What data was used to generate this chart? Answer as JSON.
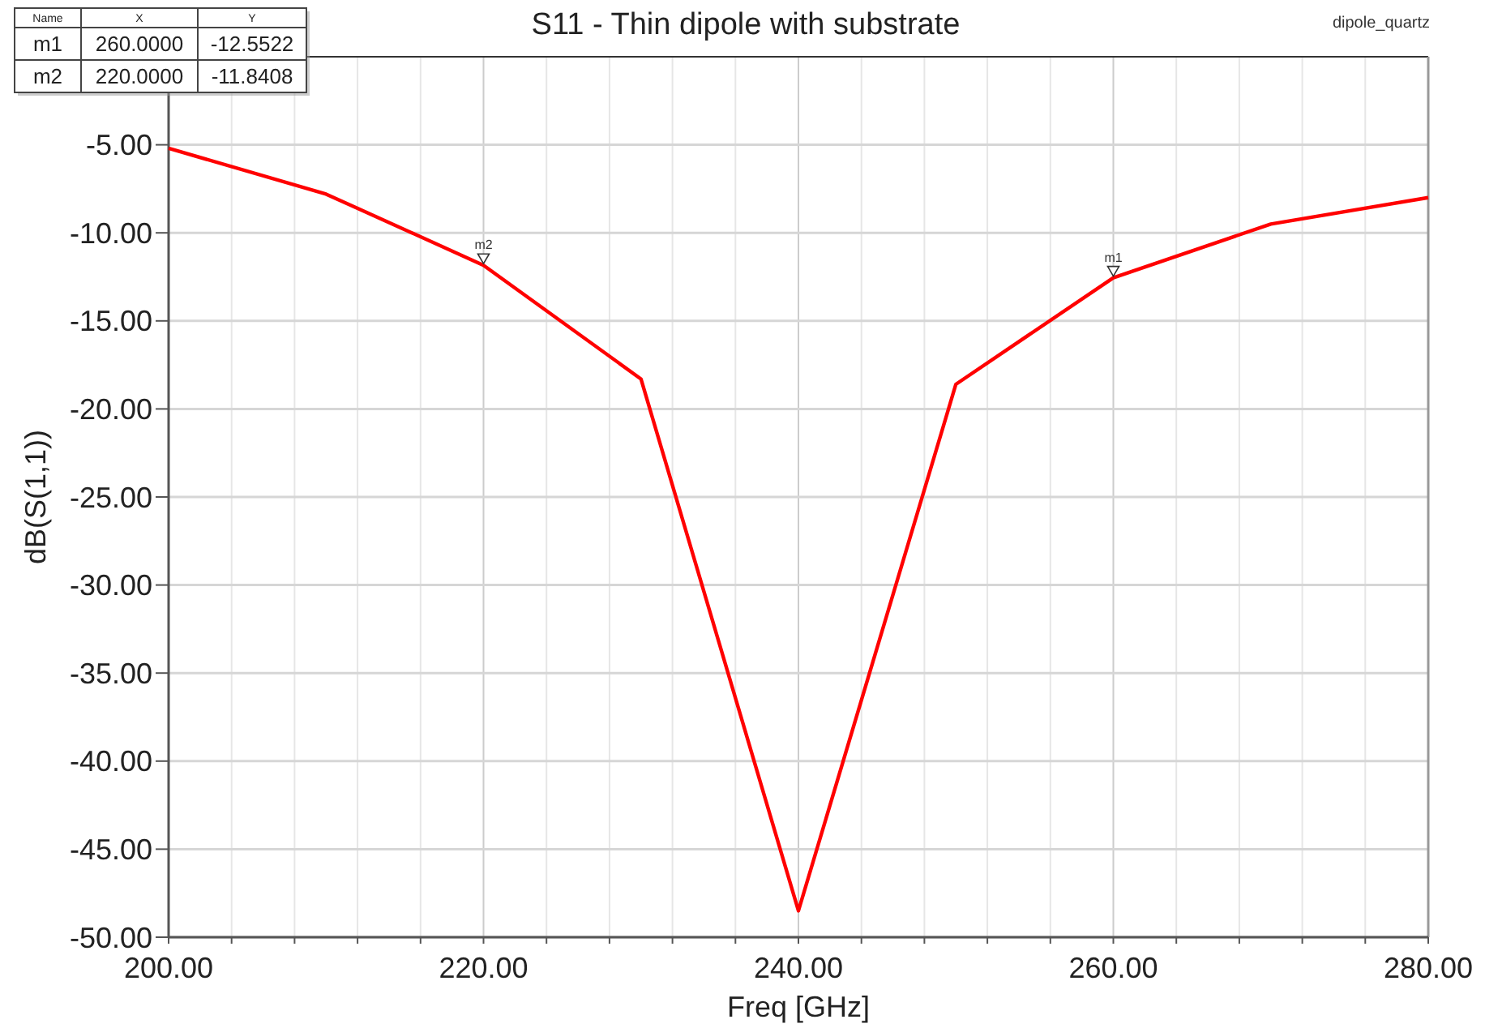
{
  "chart_data": {
    "type": "line",
    "title": "S11 - Thin dipole with substrate",
    "xlabel": "Freq [GHz]",
    "ylabel": "dB(S(1,1))",
    "x": [
      200,
      210,
      220,
      230,
      240,
      250,
      260,
      270,
      280
    ],
    "series": [
      {
        "color": "#ff0000",
        "values": [
          -5.2,
          -7.8,
          -11.8408,
          -18.3,
          -48.5,
          -18.6,
          -12.5522,
          -9.5,
          -8.0
        ]
      }
    ],
    "xlim": [
      200,
      280
    ],
    "xticks": [
      {
        "value": 200,
        "label": "200.00"
      },
      {
        "value": 204,
        "label": null
      },
      {
        "value": 208,
        "label": null
      },
      {
        "value": 212,
        "label": null
      },
      {
        "value": 216,
        "label": null
      },
      {
        "value": 220,
        "label": "220.00"
      },
      {
        "value": 224,
        "label": null
      },
      {
        "value": 228,
        "label": null
      },
      {
        "value": 232,
        "label": null
      },
      {
        "value": 236,
        "label": null
      },
      {
        "value": 240,
        "label": "240.00"
      },
      {
        "value": 244,
        "label": null
      },
      {
        "value": 248,
        "label": null
      },
      {
        "value": 252,
        "label": null
      },
      {
        "value": 256,
        "label": null
      },
      {
        "value": 260,
        "label": "260.00"
      },
      {
        "value": 264,
        "label": null
      },
      {
        "value": 268,
        "label": null
      },
      {
        "value": 272,
        "label": null
      },
      {
        "value": 276,
        "label": null
      },
      {
        "value": 280,
        "label": "280.00"
      }
    ],
    "ylim": [
      -50,
      0
    ],
    "yticks": [
      {
        "value": -50,
        "label": "-50.00"
      },
      {
        "value": -45,
        "label": "-45.00"
      },
      {
        "value": -40,
        "label": "-40.00"
      },
      {
        "value": -35,
        "label": "-35.00"
      },
      {
        "value": -30,
        "label": "-30.00"
      },
      {
        "value": -25,
        "label": "-25.00"
      },
      {
        "value": -20,
        "label": "-20.00"
      },
      {
        "value": -15,
        "label": "-15.00"
      },
      {
        "value": -10,
        "label": "-10.00"
      },
      {
        "value": -5,
        "label": "-5.00"
      }
    ],
    "grid": true,
    "marker": "none",
    "line_style": "solid",
    "annotations": [
      "Name",
      "X",
      "Y",
      "m1",
      "260.0000",
      "-12.5522",
      "m2",
      "220.0000",
      "-11.8408",
      "dipole_quartz",
      {
        "text": "m1",
        "x": 260,
        "y": -12.5522
      },
      {
        "text": "m2",
        "x": 220,
        "y": -11.8408
      }
    ]
  }
}
